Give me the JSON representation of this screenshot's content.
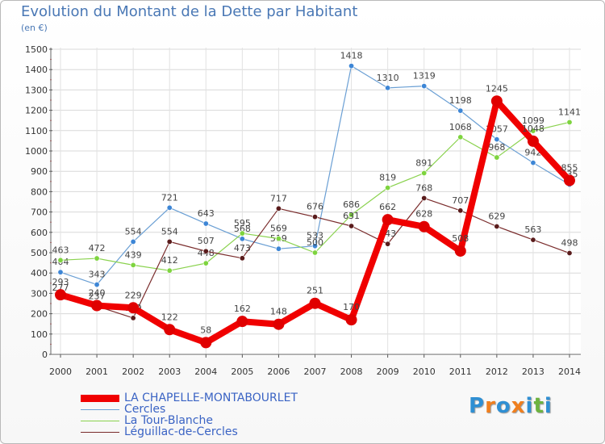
{
  "title": "Evolution du Montant de la Dette par Habitant",
  "unit_label": "(en €)",
  "logo": {
    "text": "Proxiti",
    "letters": [
      "P",
      "r",
      "o",
      "x",
      "i",
      "t",
      "i"
    ],
    "colors": [
      "#2f8fd3",
      "#f07f1e",
      "#2f8fd3",
      "#f07f1e",
      "#2f8fd3",
      "#6db33f",
      "#2f8fd3"
    ]
  },
  "chart_data": {
    "type": "line",
    "title": "Evolution du Montant de la Dette par Habitant",
    "subtitle": "(en €)",
    "xlabel": "",
    "ylabel": "",
    "x": [
      "2000",
      "2001",
      "2002",
      "2003",
      "2004",
      "2005",
      "2006",
      "2007",
      "2008",
      "2009",
      "2010",
      "2011",
      "2012",
      "2013",
      "2014"
    ],
    "ylim": [
      0,
      1500
    ],
    "yticks": [
      0,
      100,
      200,
      300,
      400,
      500,
      600,
      700,
      800,
      900,
      1000,
      1100,
      1200,
      1300,
      1400,
      1500
    ],
    "grid": true,
    "legend_position": "bottom-left",
    "series": [
      {
        "name": "Cercles",
        "color": "#6a9fd4",
        "marker_color": "#3d86d6",
        "values": [
          404,
          343,
          554,
          721,
          643,
          568,
          519,
          533,
          1418,
          1310,
          1319,
          1198,
          1057,
          942,
          835
        ],
        "labels": [
          "404",
          "343",
          "554",
          "721",
          "643",
          "568",
          "519",
          "533",
          "1418",
          "1310",
          "1319",
          "1198",
          "1057",
          "942",
          "835"
        ]
      },
      {
        "name": "La Tour-Blanche",
        "color": "#8ad24e",
        "marker_color": "#7ed43f",
        "values": [
          463,
          472,
          439,
          412,
          448,
          595,
          569,
          500,
          686,
          819,
          891,
          1068,
          968,
          1099,
          1141
        ],
        "labels": [
          "463",
          "472",
          "439",
          "412",
          "448",
          "595",
          "569",
          "500",
          "686",
          "819",
          "891",
          "1068",
          "968",
          "1099",
          "1141"
        ]
      },
      {
        "name": "Léguillac-de-Cercles",
        "color": "#7a2c2c",
        "marker_color": "#5a1c1c",
        "values": [
          277,
          237,
          179,
          554,
          507,
          473,
          717,
          676,
          631,
          543,
          768,
          707,
          629,
          563,
          498
        ],
        "labels": [
          "277",
          "237",
          "179",
          "554",
          "507",
          "473",
          "717",
          "676",
          "631",
          "543",
          "768",
          "707",
          "629",
          "563",
          "498"
        ]
      },
      {
        "name": "LA CHAPELLE-MONTABOURLET",
        "color": "#f00000",
        "marker_color": "#e00000",
        "values": [
          293,
          240,
          229,
          122,
          58,
          162,
          148,
          251,
          170,
          662,
          628,
          508,
          1245,
          1048,
          855
        ],
        "labels": [
          "293",
          "240",
          "229",
          "122",
          "58",
          "162",
          "148",
          "251",
          "170",
          "662",
          "628",
          "508",
          "1245",
          "1048",
          "855"
        ]
      }
    ]
  },
  "legend": [
    {
      "name": "LA CHAPELLE-MONTABOURLET",
      "color": "#f00000",
      "thick": true
    },
    {
      "name": "Cercles",
      "color": "#6a9fd4",
      "thick": false
    },
    {
      "name": "La Tour-Blanche",
      "color": "#8ad24e",
      "thick": false
    },
    {
      "name": "Léguillac-de-Cercles",
      "color": "#7a2c2c",
      "thick": false
    }
  ]
}
